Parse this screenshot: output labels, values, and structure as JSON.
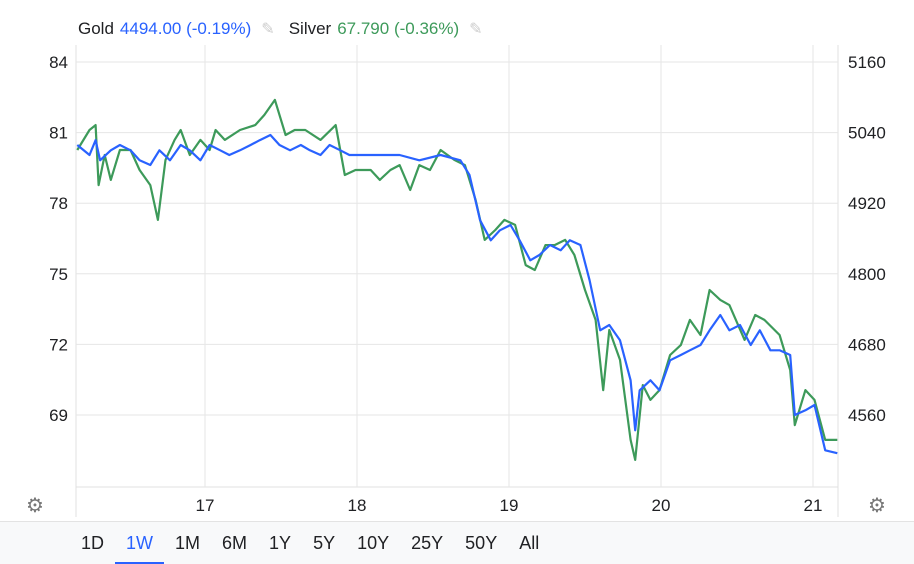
{
  "legend": {
    "gold_label": "Gold",
    "gold_value": "4494.00 (-0.19%)",
    "silver_label": "Silver",
    "silver_value": "67.790 (-0.36%)",
    "edit_icon": "pencil-icon"
  },
  "ranges": [
    "1D",
    "1W",
    "1M",
    "6M",
    "1Y",
    "5Y",
    "10Y",
    "25Y",
    "50Y",
    "All"
  ],
  "selected_range": "1W",
  "chart_data": {
    "type": "line",
    "grid": true,
    "x_ticks": [
      "17",
      "18",
      "19",
      "20",
      "21"
    ],
    "x_tick_values": [
      17,
      18,
      19,
      20,
      21
    ],
    "y_left_ticks": [
      "84",
      "81",
      "78",
      "75",
      "72",
      "69"
    ],
    "y_right_ticks": [
      "5160",
      "5040",
      "4920",
      "4800",
      "4680",
      "4560"
    ],
    "colors": {
      "gold": "#2962ff",
      "silver": "#3d9a5a"
    },
    "series": [
      {
        "name": "Gold",
        "axis": "right",
        "points": [
          [
            16.16,
            5019
          ],
          [
            16.24,
            5002
          ],
          [
            16.28,
            5027
          ],
          [
            16.31,
            4993
          ],
          [
            16.38,
            5010
          ],
          [
            16.44,
            5019
          ],
          [
            16.51,
            5010
          ],
          [
            16.57,
            4993
          ],
          [
            16.64,
            4985
          ],
          [
            16.7,
            5010
          ],
          [
            16.77,
            4993
          ],
          [
            16.84,
            5019
          ],
          [
            16.9,
            5010
          ],
          [
            16.97,
            4993
          ],
          [
            17.03,
            5019
          ],
          [
            17.1,
            5010
          ],
          [
            17.16,
            5002
          ],
          [
            17.23,
            5010
          ],
          [
            17.3,
            5019
          ],
          [
            17.36,
            5027
          ],
          [
            17.43,
            5036
          ],
          [
            17.49,
            5019
          ],
          [
            17.56,
            5010
          ],
          [
            17.63,
            5019
          ],
          [
            17.69,
            5010
          ],
          [
            17.76,
            5002
          ],
          [
            17.82,
            5019
          ],
          [
            17.89,
            5010
          ],
          [
            17.95,
            5002
          ],
          [
            18.02,
            5002
          ],
          [
            18.15,
            5002
          ],
          [
            18.28,
            5002
          ],
          [
            18.41,
            4993
          ],
          [
            18.55,
            5002
          ],
          [
            18.68,
            4993
          ],
          [
            18.74,
            4968
          ],
          [
            18.81,
            4891
          ],
          [
            18.88,
            4857
          ],
          [
            18.94,
            4874
          ],
          [
            19.01,
            4883
          ],
          [
            19.07,
            4857
          ],
          [
            19.14,
            4823
          ],
          [
            19.2,
            4832
          ],
          [
            19.27,
            4849
          ],
          [
            19.34,
            4840
          ],
          [
            19.4,
            4857
          ],
          [
            19.47,
            4849
          ],
          [
            19.53,
            4789
          ],
          [
            19.6,
            4704
          ],
          [
            19.66,
            4713
          ],
          [
            19.73,
            4687
          ],
          [
            19.8,
            4619
          ],
          [
            19.83,
            4534
          ],
          [
            19.86,
            4602
          ],
          [
            19.93,
            4619
          ],
          [
            19.99,
            4602
          ],
          [
            20.06,
            4653
          ],
          [
            20.13,
            4662
          ],
          [
            20.19,
            4670
          ],
          [
            20.26,
            4679
          ],
          [
            20.32,
            4704
          ],
          [
            20.39,
            4730
          ],
          [
            20.45,
            4704
          ],
          [
            20.52,
            4713
          ],
          [
            20.59,
            4679
          ],
          [
            20.65,
            4704
          ],
          [
            20.72,
            4670
          ],
          [
            20.78,
            4670
          ],
          [
            20.85,
            4662
          ],
          [
            20.88,
            4560
          ],
          [
            20.95,
            4568
          ],
          [
            21.01,
            4577
          ],
          [
            21.08,
            4500
          ],
          [
            21.16,
            4495
          ]
        ]
      },
      {
        "name": "Silver",
        "axis": "left",
        "points": [
          [
            16.16,
            80.26
          ],
          [
            16.24,
            81.11
          ],
          [
            16.28,
            81.32
          ],
          [
            16.3,
            78.77
          ],
          [
            16.34,
            80.05
          ],
          [
            16.38,
            78.99
          ],
          [
            16.44,
            80.26
          ],
          [
            16.51,
            80.26
          ],
          [
            16.57,
            79.41
          ],
          [
            16.64,
            78.77
          ],
          [
            16.69,
            77.29
          ],
          [
            16.74,
            79.84
          ],
          [
            16.8,
            80.69
          ],
          [
            16.84,
            81.11
          ],
          [
            16.9,
            80.05
          ],
          [
            16.97,
            80.69
          ],
          [
            17.03,
            80.26
          ],
          [
            17.07,
            81.11
          ],
          [
            17.13,
            80.69
          ],
          [
            17.23,
            81.11
          ],
          [
            17.33,
            81.32
          ],
          [
            17.39,
            81.75
          ],
          [
            17.46,
            82.39
          ],
          [
            17.53,
            80.9
          ],
          [
            17.59,
            81.11
          ],
          [
            17.66,
            81.11
          ],
          [
            17.76,
            80.69
          ],
          [
            17.86,
            81.32
          ],
          [
            17.92,
            79.2
          ],
          [
            17.99,
            79.41
          ],
          [
            18.09,
            79.41
          ],
          [
            18.15,
            78.99
          ],
          [
            18.22,
            79.41
          ],
          [
            18.28,
            79.62
          ],
          [
            18.35,
            78.56
          ],
          [
            18.41,
            79.62
          ],
          [
            18.48,
            79.41
          ],
          [
            18.55,
            80.26
          ],
          [
            18.64,
            79.84
          ],
          [
            18.71,
            79.62
          ],
          [
            18.78,
            78.14
          ],
          [
            18.84,
            76.44
          ],
          [
            18.91,
            76.86
          ],
          [
            18.97,
            77.29
          ],
          [
            19.04,
            77.08
          ],
          [
            19.11,
            75.37
          ],
          [
            19.17,
            75.16
          ],
          [
            19.24,
            76.22
          ],
          [
            19.3,
            76.22
          ],
          [
            19.37,
            76.44
          ],
          [
            19.43,
            75.8
          ],
          [
            19.5,
            74.31
          ],
          [
            19.57,
            73.04
          ],
          [
            19.62,
            70.06
          ],
          [
            19.66,
            72.61
          ],
          [
            19.73,
            71.34
          ],
          [
            19.8,
            67.94
          ],
          [
            19.83,
            67.09
          ],
          [
            19.88,
            70.27
          ],
          [
            19.93,
            69.64
          ],
          [
            19.99,
            70.06
          ],
          [
            20.06,
            71.55
          ],
          [
            20.13,
            71.97
          ],
          [
            20.19,
            73.04
          ],
          [
            20.26,
            72.4
          ],
          [
            20.32,
            74.31
          ],
          [
            20.39,
            73.89
          ],
          [
            20.45,
            73.67
          ],
          [
            20.55,
            72.19
          ],
          [
            20.62,
            73.25
          ],
          [
            20.68,
            73.04
          ],
          [
            20.78,
            72.4
          ],
          [
            20.85,
            70.91
          ],
          [
            20.88,
            68.57
          ],
          [
            20.95,
            70.06
          ],
          [
            21.01,
            69.64
          ],
          [
            21.08,
            67.94
          ],
          [
            21.16,
            67.94
          ]
        ]
      }
    ]
  }
}
